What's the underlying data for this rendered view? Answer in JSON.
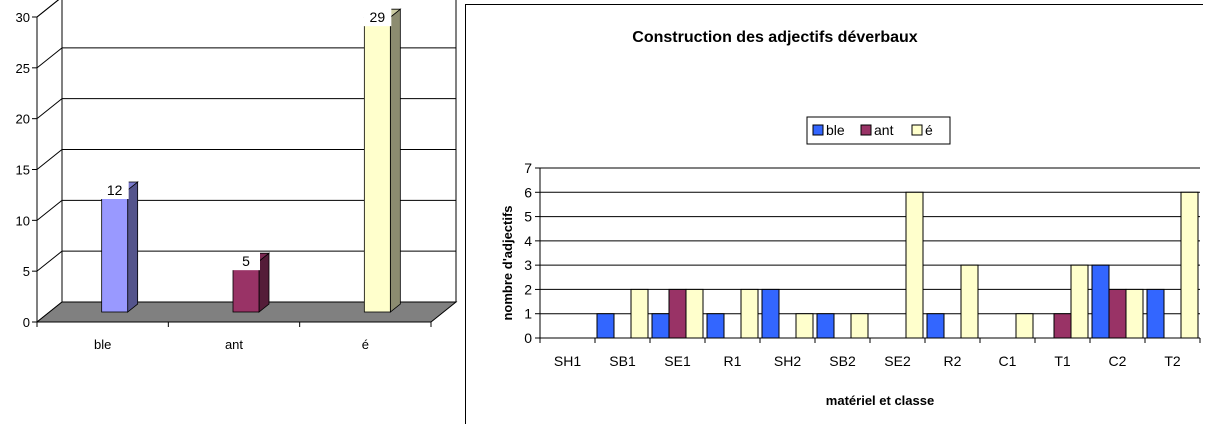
{
  "chart_data": [
    {
      "type": "bar",
      "categories": [
        "ble",
        "ant",
        "é"
      ],
      "values": [
        12,
        5,
        29
      ],
      "data_labels": [
        "12",
        "5",
        "29"
      ],
      "ylim": [
        0,
        30
      ],
      "yticks": [
        "0",
        "5",
        "10",
        "15",
        "20",
        "25",
        "30"
      ],
      "grid": true,
      "colors": [
        "#9999ff",
        "#993366",
        "#ffffcc"
      ],
      "floor_color": "#808080"
    },
    {
      "type": "bar",
      "title": "Construction des adjectifs déverbaux",
      "xlabel": "matériel et classe",
      "ylabel": "nombre d'adjectifs",
      "categories": [
        "SH1",
        "SB1",
        "SE1",
        "R1",
        "SH2",
        "SB2",
        "SE2",
        "R2",
        "C1",
        "T1",
        "C2",
        "T2"
      ],
      "ylim": [
        0,
        7
      ],
      "yticks": [
        "0",
        "1",
        "2",
        "3",
        "4",
        "5",
        "6",
        "7"
      ],
      "grid": true,
      "legend_position": "top",
      "series": [
        {
          "name": "ble",
          "color": "#3366ff",
          "values": [
            0,
            1,
            1,
            1,
            2,
            1,
            0,
            1,
            0,
            0,
            3,
            2
          ]
        },
        {
          "name": "ant",
          "color": "#993366",
          "values": [
            0,
            0,
            2,
            0,
            0,
            0,
            0,
            0,
            0,
            1,
            2,
            0
          ]
        },
        {
          "name": "é",
          "color": "#ffffcc",
          "values": [
            0,
            2,
            2,
            2,
            1,
            1,
            6,
            3,
            1,
            3,
            2,
            6
          ]
        }
      ]
    }
  ]
}
